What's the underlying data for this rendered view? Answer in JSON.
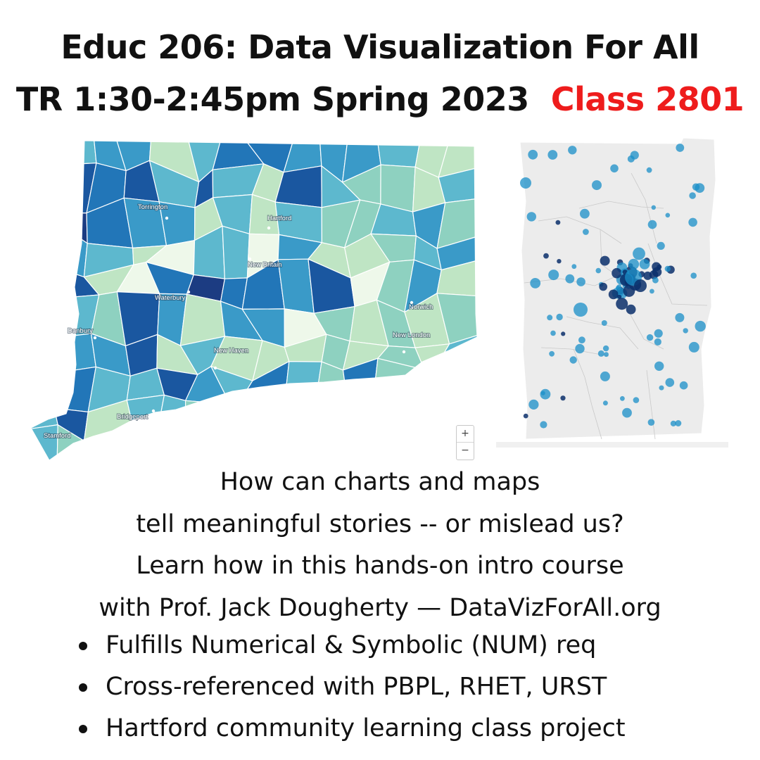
{
  "title": {
    "line1": "Educ 206: Data Visualization For All",
    "line2": "TR 1:30-2:45pm Spring 2023",
    "class_label": "Class 2801",
    "class_color": "#ee1c1c"
  },
  "choropleth_map": {
    "cities": [
      "Torrington",
      "Hartford",
      "New Britain",
      "Waterbury",
      "Danbury",
      "Norwich",
      "New London",
      "New Haven",
      "Bridgeport",
      "Stamford"
    ],
    "color_scale": [
      "#eef8ea",
      "#bfe5c4",
      "#8ed1c0",
      "#5db8ce",
      "#3a9ac8",
      "#2276b8",
      "#1a57a0",
      "#1c3c82"
    ],
    "zoom_in": "+",
    "zoom_out": "−"
  },
  "dot_map": {
    "dot_color": "#1a8fc8",
    "dot_dark_color": "#0a2f6b",
    "background_color": "#ececec"
  },
  "description": {
    "line1": "How can charts and maps",
    "line2": "tell meaningful stories -- or mislead us?",
    "line3": "Learn how in this hands-on intro course",
    "line4": "with Prof. Jack Dougherty — DataVizForAll.org"
  },
  "bullets": [
    "Fulfills Numerical & Symbolic (NUM) req",
    "Cross-referenced with PBPL, RHET, URST",
    "Hartford community learning class project"
  ]
}
